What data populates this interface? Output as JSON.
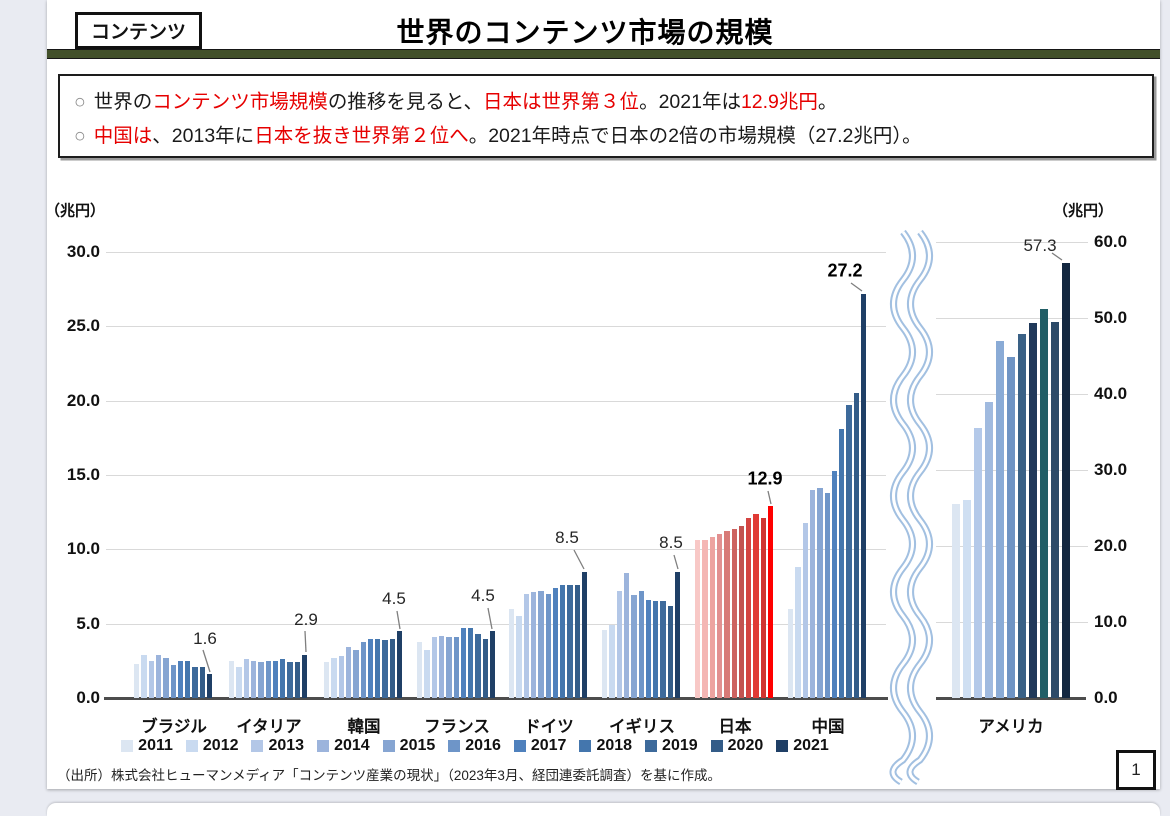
{
  "page": {
    "badge": "コンテンツ",
    "title": "世界のコンテンツ市場の規模",
    "page_number": "1",
    "source": "（出所）株式会社ヒューマンメディア「コンテンツ産業の現状」（2023年3月、経団連委託調査）を基に作成。"
  },
  "summary": {
    "marker": "○",
    "bullets": [
      {
        "segments": [
          {
            "t": "世界の",
            "red": false
          },
          {
            "t": "コンテンツ市場規模",
            "red": true
          },
          {
            "t": "の推移を見ると、",
            "red": false
          },
          {
            "t": "日本は世界第３位",
            "red": true
          },
          {
            "t": "。2021年は",
            "red": false
          },
          {
            "t": "12.9兆円",
            "red": true
          },
          {
            "t": "。",
            "red": false
          }
        ]
      },
      {
        "segments": [
          {
            "t": "中国は",
            "red": true
          },
          {
            "t": "、2013年に",
            "red": false
          },
          {
            "t": "日本を抜き世界第２位へ",
            "red": true
          },
          {
            "t": "。2021年時点で日本の2倍の市場規模（27.2兆円）。",
            "red": false
          }
        ]
      }
    ]
  },
  "chart_data": {
    "type": "bar",
    "title": "世界のコンテンツ市場の規模",
    "grid": true,
    "legend_position": "bottom",
    "years": [
      "2011",
      "2012",
      "2013",
      "2014",
      "2015",
      "2016",
      "2017",
      "2018",
      "2019",
      "2020",
      "2021"
    ],
    "left_chart": {
      "unit": "（兆円）",
      "ylim": [
        0,
        30
      ],
      "yticks": [
        "30.0",
        "25.0",
        "20.0",
        "15.0",
        "10.0",
        "5.0",
        "0.0"
      ],
      "categories": [
        "ブラジル",
        "イタリア",
        "韓国",
        "フランス",
        "ドイツ",
        "イギリス",
        "日本",
        "中国"
      ],
      "red_category": "日本",
      "blue_colors": [
        "#dce6f2",
        "#c9daf0",
        "#b3c7e7",
        "#9cb4dc",
        "#86a5d2",
        "#6e95c8",
        "#4f81bd",
        "#4476ad",
        "#3d6a9b",
        "#335c88",
        "#1f3f66"
      ],
      "red_colors": [
        "#f8c8c6",
        "#f4b6b4",
        "#eda3a0",
        "#e29090",
        "#d87a77",
        "#cd6360",
        "#c25350",
        "#d44441",
        "#e03a35",
        "#d03531",
        "#ff0000"
      ],
      "values": {
        "ブラジル": [
          2.3,
          2.9,
          2.5,
          2.9,
          2.7,
          2.2,
          2.5,
          2.5,
          2.1,
          2.1,
          1.6
        ],
        "イタリア": [
          2.5,
          2.1,
          2.6,
          2.5,
          2.4,
          2.5,
          2.5,
          2.6,
          2.4,
          2.4,
          2.9
        ],
        "韓国": [
          2.4,
          2.7,
          2.8,
          3.4,
          3.2,
          3.8,
          4.0,
          4.0,
          3.9,
          4.0,
          4.5
        ],
        "フランス": [
          3.8,
          3.2,
          4.1,
          4.2,
          4.1,
          4.1,
          4.7,
          4.7,
          4.3,
          4.0,
          4.5
        ],
        "ドイツ": [
          6.0,
          5.5,
          7.0,
          7.1,
          7.2,
          7.0,
          7.4,
          7.6,
          7.6,
          7.6,
          8.5
        ],
        "イギリス": [
          4.6,
          4.9,
          7.2,
          8.4,
          6.9,
          7.2,
          6.6,
          6.5,
          6.5,
          6.2,
          8.5
        ],
        "日本": [
          10.6,
          10.6,
          10.8,
          11.0,
          11.2,
          11.4,
          11.6,
          12.1,
          12.4,
          12.1,
          12.9
        ],
        "中国": [
          6.0,
          8.8,
          11.8,
          14.0,
          14.1,
          13.8,
          15.3,
          18.1,
          19.7,
          20.5,
          27.2
        ]
      }
    },
    "right_chart": {
      "unit": "（兆円）",
      "ylim": [
        0,
        60
      ],
      "yticks": [
        "60.0",
        "50.0",
        "40.0",
        "30.0",
        "20.0",
        "10.0",
        "0.0"
      ],
      "category": "アメリカ",
      "colors": [
        "#dce6f2",
        "#cfdff2",
        "#b4c9e9",
        "#a0badf",
        "#8aabd6",
        "#6f94c4",
        "#3a6186",
        "#20395a",
        "#215e66",
        "#2c4a68",
        "#132740"
      ],
      "values": [
        25.5,
        26.0,
        35.5,
        39.0,
        47.0,
        44.9,
        47.9,
        49.3,
        51.2,
        49.5,
        57.3
      ]
    },
    "annotations": [
      {
        "country": "ブラジル",
        "text": "1.6",
        "bold": false
      },
      {
        "country": "イタリア",
        "text": "2.9",
        "bold": false
      },
      {
        "country": "韓国",
        "text": "4.5",
        "bold": false
      },
      {
        "country": "フランス",
        "text": "4.5",
        "bold": false
      },
      {
        "country": "ドイツ",
        "text": "8.5",
        "bold": false
      },
      {
        "country": "イギリス",
        "text": "8.5",
        "bold": false
      },
      {
        "country": "日本",
        "text": "12.9",
        "bold": true
      },
      {
        "country": "中国",
        "text": "27.2",
        "bold": true
      },
      {
        "country": "アメリカ",
        "text": "57.3",
        "bold": false
      }
    ]
  }
}
